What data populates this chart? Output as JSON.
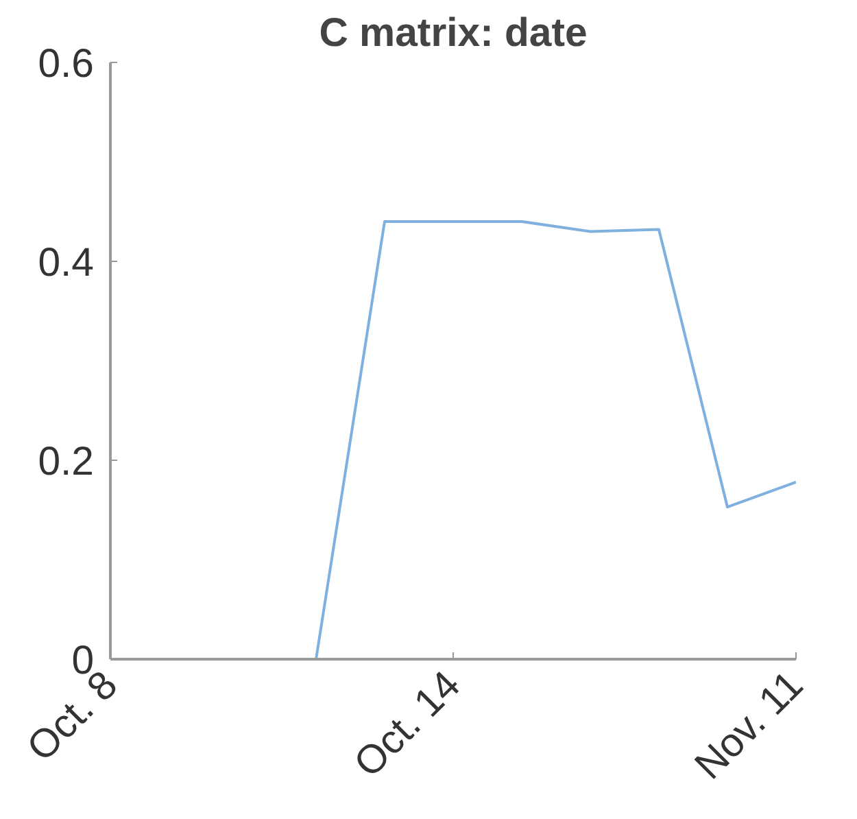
{
  "chart_data": {
    "type": "line",
    "title": "C matrix: date",
    "categories": [
      "Oct. 8",
      null,
      null,
      null,
      null,
      "Oct. 14",
      null,
      null,
      null,
      null,
      "Nov. 11"
    ],
    "series": [
      {
        "color": "#7fb0e0",
        "values": [
          null,
          0,
          0,
          0,
          0.44,
          0.44,
          0.44,
          0.43,
          0.432,
          0.153,
          0.178
        ]
      }
    ],
    "ylim": [
      0,
      0.6
    ],
    "yticks": [
      0,
      0.2,
      0.4,
      0.6
    ],
    "grid": false,
    "marker": "none",
    "line_style": "solid"
  }
}
